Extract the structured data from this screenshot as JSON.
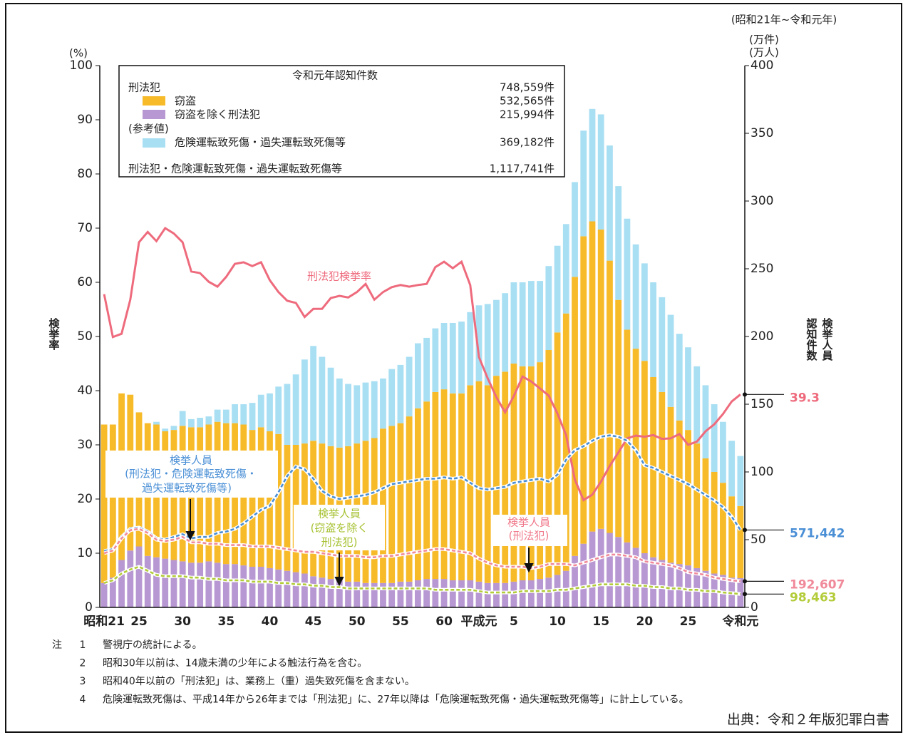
{
  "chart_data": {
    "type": "bar",
    "period": "(昭和21年~令和元年)",
    "ylabel": "検挙率",
    "yunit": "(%)",
    "y2units": [
      "(万件)",
      "(万人)"
    ],
    "y2labels": [
      "検挙人員",
      "認知件数"
    ],
    "ylim": [
      0,
      100
    ],
    "yticks": [
      0,
      10,
      20,
      30,
      40,
      50,
      60,
      70,
      80,
      90,
      100
    ],
    "y2lim": [
      0,
      400
    ],
    "y2ticks": [
      0,
      50,
      100,
      150,
      200,
      250,
      300,
      350,
      400
    ],
    "categories": [
      "昭和21",
      null,
      null,
      null,
      "25",
      null,
      null,
      null,
      null,
      "30",
      null,
      null,
      null,
      null,
      "35",
      null,
      null,
      null,
      null,
      "40",
      null,
      null,
      null,
      null,
      "45",
      null,
      null,
      null,
      null,
      "50",
      null,
      null,
      null,
      null,
      "55",
      null,
      null,
      null,
      null,
      "60",
      null,
      null,
      null,
      "平成元",
      null,
      null,
      null,
      "5",
      null,
      null,
      null,
      null,
      "10",
      null,
      null,
      null,
      null,
      "15",
      null,
      null,
      null,
      null,
      "20",
      null,
      null,
      null,
      null,
      "25",
      null,
      null,
      null,
      null,
      null,
      "令和元"
    ],
    "legend": {
      "title": "令和元年認知件数",
      "total_label": "刑法犯",
      "total_value": "748,559件",
      "reference_label": "(参考値)",
      "grand_label": "刑法犯・危険運転致死傷・過失運転致死傷等",
      "grand_value": "1,117,741件"
    },
    "series": [
      {
        "name": "窃盗を除く刑法犯",
        "type": "bar",
        "axis": "y2",
        "color": "#b898d2",
        "legend_value": "215,994件",
        "values": [
          18,
          22,
          35,
          42,
          45,
          38,
          37,
          36,
          35,
          34,
          33,
          33,
          34,
          33,
          32,
          32,
          31,
          30,
          30,
          29,
          28,
          27,
          26,
          25,
          23,
          22,
          21,
          20,
          19,
          19,
          18,
          18,
          18,
          18,
          19,
          19,
          20,
          21,
          21,
          21,
          20,
          20,
          20,
          19,
          18,
          18,
          18,
          19,
          20,
          20,
          21,
          22,
          24,
          27,
          38,
          47,
          56,
          58,
          55,
          52,
          48,
          44,
          40,
          37,
          35,
          33,
          32,
          31,
          29,
          27,
          25,
          24,
          22,
          21.5994
        ]
      },
      {
        "name": "窃盗",
        "type": "bar",
        "axis": "y2",
        "color": "#f7bb2a",
        "legend_value": "532,565件",
        "values": [
          117,
          113,
          123,
          115,
          99,
          98,
          98,
          94,
          96,
          100,
          100,
          100,
          101,
          104,
          104,
          104,
          104,
          101,
          103,
          101,
          100,
          93,
          94,
          96,
          100,
          99,
          98,
          98,
          100,
          102,
          105,
          107,
          114,
          116,
          117,
          122,
          127,
          131,
          138,
          140,
          138,
          138,
          144,
          148,
          146,
          153,
          156,
          161,
          158,
          158,
          160,
          168,
          179,
          190,
          206,
          227,
          229,
          221,
          201,
          175,
          157,
          147,
          142,
          133,
          124,
          115,
          106,
          100,
          92,
          83,
          75,
          68,
          60,
          53.2565
        ]
      },
      {
        "name": "危険運転致死傷・過失運転致死傷等",
        "type": "bar",
        "axis": "y2",
        "color": "#a9dff3",
        "legend_value": "369,182件",
        "values": [
          0,
          0,
          0,
          0,
          0,
          0,
          2,
          2,
          3,
          11,
          6,
          7,
          6,
          9,
          10,
          14,
          15,
          20,
          24,
          28,
          35,
          45,
          52,
          62,
          70,
          64,
          58,
          51,
          46,
          43,
          43,
          42,
          37,
          42,
          43,
          44,
          48,
          47,
          47,
          49,
          52,
          53,
          54,
          56,
          60,
          56,
          58,
          60,
          62,
          63,
          60,
          62,
          64,
          66,
          70,
          78,
          83,
          85,
          85,
          84,
          82,
          77,
          72,
          70,
          70,
          68,
          64,
          61,
          57,
          54,
          50,
          45,
          41,
          36.9182
        ]
      },
      {
        "name": [
          "刑法犯検挙率"
        ],
        "type": "line",
        "axis": "y",
        "color": "#ee6b7d",
        "values": [
          57.8,
          49.9,
          50.5,
          56.8,
          67.4,
          69.3,
          67.6,
          70.0,
          69.0,
          67.4,
          62.0,
          61.7,
          60.1,
          59.2,
          61.0,
          63.4,
          63.7,
          63.0,
          63.7,
          60.4,
          58.2,
          56.6,
          56.2,
          53.6,
          55.1,
          55.1,
          57.1,
          57.5,
          57.2,
          58.2,
          59.7,
          56.8,
          58.2,
          59.1,
          59.5,
          59.2,
          59.5,
          59.7,
          62.8,
          63.8,
          62.6,
          63.8,
          59.5,
          46.2,
          42.3,
          38.8,
          36.0,
          39.0,
          42.6,
          41.7,
          40.4,
          39.1,
          35.8,
          31.8,
          23.6,
          19.8,
          20.8,
          23.2,
          26.1,
          28.6,
          31.2,
          31.7,
          31.5,
          31.8,
          31.1,
          31.2,
          32.0,
          30.0,
          30.6,
          32.5,
          33.8,
          35.7,
          38.0,
          39.3
        ]
      },
      {
        "name": [
          "検挙人員",
          "(刑法犯・危険運転致死傷・",
          "過失運転致死傷等)"
        ],
        "type": "line",
        "dashed": true,
        "axis": "y2",
        "color": "#4a8fd6",
        "values": [
          41.6,
          43,
          52,
          58,
          59,
          56,
          51,
          50,
          52,
          54,
          51,
          52,
          52,
          55,
          56,
          58,
          62,
          67,
          72,
          75,
          85,
          97,
          104,
          102,
          95,
          86,
          82,
          80,
          81,
          82,
          83,
          85,
          88,
          91,
          92,
          93,
          94,
          95,
          95,
          96,
          95,
          96,
          92,
          88,
          87,
          88,
          89,
          92,
          93,
          94,
          95,
          93,
          98,
          109,
          116,
          119,
          123,
          126,
          127,
          126,
          123,
          116,
          105,
          103,
          100,
          97,
          94,
          91,
          87,
          83,
          79,
          74,
          67,
          57.1442
        ],
        "value_labels": [
          null,
          null,
          null,
          null,
          null,
          null,
          null,
          null,
          null,
          null,
          null,
          null,
          null,
          null,
          null,
          null,
          null,
          null,
          null,
          null,
          null,
          null,
          null,
          null,
          null,
          null,
          null,
          null,
          null,
          null,
          null,
          null,
          null,
          null,
          null,
          null,
          null,
          null,
          null,
          null,
          null,
          null,
          null,
          null,
          null,
          null,
          null,
          null,
          null,
          null,
          null,
          null,
          null,
          null,
          null,
          null,
          null,
          null,
          null,
          null,
          null,
          null,
          null,
          null,
          null,
          null,
          null,
          null,
          null,
          null,
          null,
          null,
          null,
          "571,442"
        ]
      },
      {
        "name": [
          "検挙人員",
          "(刑法犯)"
        ],
        "type": "line",
        "dashed": true,
        "axis": "y2",
        "color": "#f08a9a",
        "values": [
          40,
          42,
          51,
          57,
          58,
          55,
          50,
          49,
          50,
          52,
          48,
          48,
          47,
          47,
          46,
          46,
          46,
          45,
          45,
          45,
          44,
          43,
          42,
          41,
          41,
          40,
          39,
          38,
          38,
          38,
          37,
          37,
          38,
          38,
          39,
          40,
          41,
          42,
          43,
          43,
          42,
          41,
          40,
          36,
          33,
          31,
          30,
          30,
          30,
          29,
          30,
          32,
          32,
          32,
          31,
          33,
          35,
          37,
          39,
          39,
          38,
          37,
          34,
          33,
          32,
          31,
          29,
          26,
          25,
          24,
          22,
          21,
          20,
          19.2607
        ],
        "value_labels": [
          null,
          null,
          null,
          null,
          null,
          null,
          null,
          null,
          null,
          null,
          null,
          null,
          null,
          null,
          null,
          null,
          null,
          null,
          null,
          null,
          null,
          null,
          null,
          null,
          null,
          null,
          null,
          null,
          null,
          null,
          null,
          null,
          null,
          null,
          null,
          null,
          null,
          null,
          null,
          null,
          null,
          null,
          null,
          null,
          null,
          null,
          null,
          null,
          null,
          null,
          null,
          null,
          null,
          null,
          null,
          null,
          null,
          null,
          null,
          null,
          null,
          null,
          null,
          null,
          null,
          null,
          null,
          null,
          null,
          null,
          null,
          null,
          null,
          "192,607"
        ]
      },
      {
        "name": [
          "検挙人員",
          "(窃盗を除く",
          "刑法犯)"
        ],
        "type": "line",
        "dashed": true,
        "axis": "y2",
        "color": "#b3cc3a",
        "values": [
          18,
          20,
          25,
          28,
          30,
          27,
          24,
          23,
          23,
          23,
          22,
          22,
          21,
          21,
          20,
          20,
          20,
          19,
          19,
          19,
          18,
          18,
          17,
          17,
          16,
          16,
          15,
          15,
          14,
          14,
          14,
          14,
          14,
          14,
          14,
          14,
          14,
          14,
          13,
          13,
          13,
          13,
          13,
          12,
          11,
          11,
          11,
          11,
          12,
          12,
          12,
          12,
          13,
          13,
          14,
          15,
          16,
          17,
          17,
          17,
          17,
          16,
          16,
          15,
          15,
          14,
          14,
          13,
          13,
          12,
          12,
          11,
          10.5,
          9.8463
        ],
        "value_labels": [
          null,
          null,
          null,
          null,
          null,
          null,
          null,
          null,
          null,
          null,
          null,
          null,
          null,
          null,
          null,
          null,
          null,
          null,
          null,
          null,
          null,
          null,
          null,
          null,
          null,
          null,
          null,
          null,
          null,
          null,
          null,
          null,
          null,
          null,
          null,
          null,
          null,
          null,
          null,
          null,
          null,
          null,
          null,
          null,
          null,
          null,
          null,
          null,
          null,
          null,
          null,
          null,
          null,
          null,
          null,
          null,
          null,
          null,
          null,
          null,
          null,
          null,
          null,
          null,
          null,
          null,
          null,
          null,
          null,
          null,
          null,
          null,
          null,
          "98,463"
        ]
      }
    ]
  },
  "notes": {
    "marker": "注",
    "items": [
      {
        "number": "1",
        "text": "警視庁の統計による。"
      },
      {
        "number": "2",
        "text": "昭和30年以前は、14歳未満の少年による触法行為を含む。"
      },
      {
        "number": "3",
        "text": "昭和40年以前の「刑法犯」は、業務上（重）過失致死傷を含まない。"
      },
      {
        "number": "4",
        "text": "危険運転致死傷は、平成14年から26年までは「刑法犯」に、27年以降は「危険運転致死傷・過失運転致死傷等」に計上している。"
      }
    ]
  },
  "source": "出典：令和２年版犯罪白書"
}
